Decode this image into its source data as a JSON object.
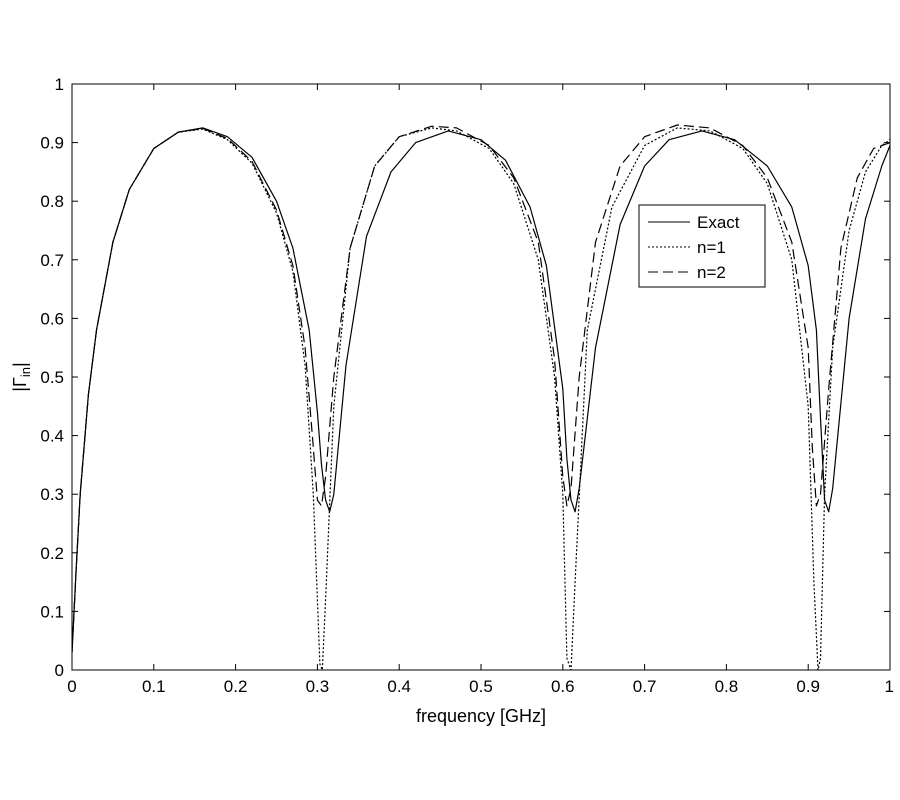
{
  "chart_data": {
    "type": "line",
    "title": "",
    "xlabel": "frequency [GHz]",
    "ylabel": "|Γ",
    "ylabel_sub": "in",
    "ylabel_close": "|",
    "xlim": [
      0,
      1
    ],
    "ylim": [
      0,
      1
    ],
    "xticks": [
      "0",
      "0.1",
      "0.2",
      "0.3",
      "0.4",
      "0.5",
      "0.6",
      "0.7",
      "0.8",
      "0.9",
      "1"
    ],
    "yticks": [
      "0",
      "0.1",
      "0.2",
      "0.3",
      "0.4",
      "0.5",
      "0.6",
      "0.7",
      "0.8",
      "0.9",
      "1"
    ],
    "grid": false,
    "legend_position": "right-upper",
    "series": [
      {
        "name": "Exact",
        "style": "solid",
        "color": "#000000",
        "x": [
          0,
          0.005,
          0.01,
          0.02,
          0.03,
          0.05,
          0.07,
          0.1,
          0.13,
          0.16,
          0.19,
          0.22,
          0.25,
          0.27,
          0.29,
          0.3,
          0.305,
          0.31,
          0.315,
          0.32,
          0.335,
          0.36,
          0.39,
          0.42,
          0.46,
          0.5,
          0.53,
          0.56,
          0.58,
          0.6,
          0.605,
          0.61,
          0.615,
          0.62,
          0.64,
          0.67,
          0.7,
          0.73,
          0.77,
          0.81,
          0.85,
          0.88,
          0.9,
          0.91,
          0.915,
          0.92,
          0.925,
          0.93,
          0.95,
          0.97,
          0.99,
          1.0
        ],
        "y": [
          0.03,
          0.17,
          0.3,
          0.47,
          0.58,
          0.73,
          0.82,
          0.89,
          0.918,
          0.925,
          0.91,
          0.875,
          0.8,
          0.72,
          0.58,
          0.44,
          0.35,
          0.29,
          0.27,
          0.3,
          0.52,
          0.74,
          0.85,
          0.9,
          0.92,
          0.905,
          0.87,
          0.79,
          0.69,
          0.48,
          0.36,
          0.29,
          0.27,
          0.31,
          0.55,
          0.76,
          0.86,
          0.905,
          0.92,
          0.905,
          0.86,
          0.79,
          0.69,
          0.58,
          0.43,
          0.29,
          0.27,
          0.31,
          0.6,
          0.77,
          0.86,
          0.895
        ]
      },
      {
        "name": "n=1",
        "style": "dotted",
        "color": "#000000",
        "x": [
          0,
          0.005,
          0.01,
          0.02,
          0.03,
          0.05,
          0.07,
          0.1,
          0.13,
          0.16,
          0.19,
          0.22,
          0.25,
          0.27,
          0.285,
          0.295,
          0.3,
          0.303,
          0.306,
          0.31,
          0.32,
          0.34,
          0.37,
          0.4,
          0.44,
          0.47,
          0.51,
          0.54,
          0.57,
          0.59,
          0.6,
          0.605,
          0.61,
          0.615,
          0.63,
          0.66,
          0.7,
          0.74,
          0.78,
          0.82,
          0.85,
          0.88,
          0.9,
          0.907,
          0.912,
          0.915,
          0.92,
          0.93,
          0.95,
          0.97,
          0.99,
          1.0
        ],
        "y": [
          0.03,
          0.17,
          0.3,
          0.47,
          0.58,
          0.73,
          0.82,
          0.89,
          0.918,
          0.923,
          0.905,
          0.865,
          0.78,
          0.68,
          0.52,
          0.3,
          0.12,
          0.01,
          0.0,
          0.12,
          0.45,
          0.72,
          0.86,
          0.91,
          0.925,
          0.92,
          0.89,
          0.83,
          0.7,
          0.5,
          0.3,
          0.02,
          0.0,
          0.15,
          0.58,
          0.79,
          0.895,
          0.925,
          0.92,
          0.89,
          0.83,
          0.7,
          0.45,
          0.15,
          0.0,
          0.02,
          0.3,
          0.55,
          0.75,
          0.85,
          0.895,
          0.905
        ]
      },
      {
        "name": "n=2",
        "style": "dashed",
        "color": "#000000",
        "x": [
          0,
          0.005,
          0.01,
          0.02,
          0.03,
          0.05,
          0.07,
          0.1,
          0.13,
          0.16,
          0.19,
          0.22,
          0.25,
          0.27,
          0.285,
          0.295,
          0.3,
          0.305,
          0.31,
          0.32,
          0.34,
          0.37,
          0.4,
          0.44,
          0.47,
          0.51,
          0.54,
          0.57,
          0.59,
          0.6,
          0.605,
          0.61,
          0.62,
          0.64,
          0.67,
          0.7,
          0.74,
          0.78,
          0.82,
          0.85,
          0.88,
          0.9,
          0.905,
          0.91,
          0.915,
          0.925,
          0.94,
          0.96,
          0.98,
          1.0
        ],
        "y": [
          0.03,
          0.17,
          0.3,
          0.47,
          0.58,
          0.73,
          0.82,
          0.89,
          0.918,
          0.924,
          0.907,
          0.868,
          0.785,
          0.69,
          0.55,
          0.38,
          0.29,
          0.28,
          0.33,
          0.5,
          0.72,
          0.86,
          0.91,
          0.928,
          0.925,
          0.895,
          0.84,
          0.73,
          0.53,
          0.33,
          0.28,
          0.31,
          0.5,
          0.73,
          0.86,
          0.91,
          0.93,
          0.925,
          0.895,
          0.84,
          0.73,
          0.55,
          0.38,
          0.28,
          0.3,
          0.48,
          0.72,
          0.84,
          0.89,
          0.9
        ]
      }
    ]
  }
}
